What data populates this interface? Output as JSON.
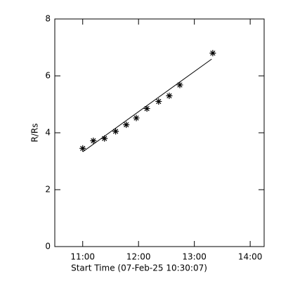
{
  "chart_data": {
    "type": "scatter",
    "x_label": "Start Time (07-Feb-25 10:30:07)",
    "y_label": "R/Rs",
    "xlim": [
      10.5,
      14.25
    ],
    "xticks": [
      {
        "value": 11,
        "label": "11:00"
      },
      {
        "value": 12,
        "label": "12:00"
      },
      {
        "value": 13,
        "label": "13:00"
      },
      {
        "value": 14,
        "label": "14:00"
      }
    ],
    "ylim": [
      0,
      8
    ],
    "yticks": [
      0,
      2,
      4,
      6,
      8
    ],
    "grid": false,
    "series": [
      {
        "type": "scatter",
        "marker": "asterisk",
        "color": "#000000",
        "x": [
          11.0,
          11.19,
          11.39,
          11.59,
          11.78,
          11.96,
          12.15,
          12.36,
          12.55,
          12.74,
          13.33
        ],
        "values": [
          3.45,
          3.72,
          3.8,
          4.05,
          4.28,
          4.52,
          4.85,
          5.1,
          5.3,
          5.68,
          6.8
        ]
      },
      {
        "type": "line",
        "color": "#000000",
        "x": [
          11.0,
          13.31
        ],
        "values": [
          3.33,
          6.59
        ]
      }
    ]
  }
}
